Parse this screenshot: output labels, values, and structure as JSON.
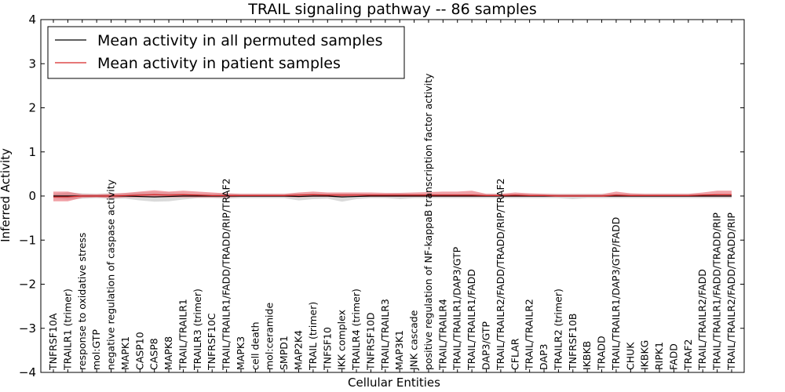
{
  "chart_data": {
    "type": "line",
    "title": "TRAIL signaling pathway -- 86 samples",
    "xlabel": "Cellular Entities",
    "ylabel": "Inferred Activity",
    "ylim": [
      -4,
      4
    ],
    "yticks": [
      4,
      3,
      2,
      1,
      0,
      -1,
      -2,
      -3,
      -4
    ],
    "ytick_labels": [
      "4",
      "3",
      "2",
      "1",
      "0",
      "−1",
      "−2",
      "−3",
      "−4"
    ],
    "categories": [
      "TNFRSF10A",
      "TRAILR1 (trimer)",
      "response to oxidative stress",
      "mol:GTP",
      "negative regulation of caspase activity",
      "MAPK1",
      "CASP10",
      "CASP8",
      "MAPK8",
      "TRAIL/TRAILR1",
      "TRAILR3 (trimer)",
      "TNFRSF10C",
      "TRAIL/TRAILR1/FADD/TRADD/RIP/TRAF2",
      "MAPK3",
      "cell death",
      "mol:ceramide",
      "SMPD1",
      "MAP2K4",
      "TRAIL (trimer)",
      "TNFSF10",
      "IKK complex",
      "TRAILR4 (trimer)",
      "TNFRSF10D",
      "TRAIL/TRAILR3",
      "MAP3K1",
      "JNK cascade",
      "positive regulation of NF-kappaB transcription factor activity",
      "TRAIL/TRAILR4",
      "TRAIL/TRAILR1/DAP3/GTP",
      "TRAIL/TRAILR1/FADD",
      "DAP3/GTP",
      "TRAIL/TRAILR2/FADD/TRADD/RIP/TRAF2",
      "CFLAR",
      "TRAIL/TRAILR2",
      "DAP3",
      "TRAILR2 (trimer)",
      "TNFRSF10B",
      "IKBKB",
      "TRADD",
      "TRAIL/TRAILR1/DAP3/GTP/FADD",
      "CHUK",
      "IKBKG",
      "RIPK1",
      "FADD",
      "TRAF2",
      "TRAIL/TRAILR2/FADD",
      "TRAIL/TRAILR1/FADD/TRADD/RIP",
      "TRAIL/TRAILR2/FADD/TRADD/RIP"
    ],
    "series": [
      {
        "name": "Mean activity in all permuted samples",
        "color": "#000000",
        "band_color": "#bbbbbb",
        "values": [
          0,
          0,
          0,
          0,
          0,
          0,
          -0.01,
          -0.02,
          -0.01,
          0,
          0,
          0,
          0,
          0,
          0,
          0,
          0,
          -0.01,
          0,
          0,
          -0.02,
          -0.01,
          0,
          0,
          0,
          0,
          0,
          0,
          0,
          0,
          0,
          0,
          0,
          0,
          0,
          0,
          0,
          0,
          0,
          0,
          0,
          0,
          0,
          0,
          0,
          0,
          0,
          0
        ],
        "band_lower": [
          -0.05,
          -0.08,
          -0.06,
          -0.05,
          -0.06,
          -0.06,
          -0.1,
          -0.13,
          -0.12,
          -0.08,
          -0.05,
          -0.05,
          -0.06,
          -0.05,
          -0.05,
          -0.05,
          -0.05,
          -0.1,
          -0.07,
          -0.06,
          -0.13,
          -0.07,
          -0.05,
          -0.05,
          -0.07,
          -0.05,
          -0.05,
          -0.05,
          -0.05,
          -0.05,
          -0.05,
          -0.05,
          -0.05,
          -0.05,
          -0.05,
          -0.05,
          -0.07,
          -0.05,
          -0.05,
          -0.05,
          -0.05,
          -0.05,
          -0.05,
          -0.05,
          -0.05,
          -0.05,
          -0.05,
          -0.05
        ],
        "band_upper": [
          0.05,
          0.08,
          0.06,
          0.05,
          0.06,
          0.06,
          0.08,
          0.08,
          0.08,
          0.06,
          0.05,
          0.05,
          0.06,
          0.05,
          0.05,
          0.05,
          0.05,
          0.06,
          0.06,
          0.06,
          0.06,
          0.06,
          0.05,
          0.05,
          0.06,
          0.05,
          0.05,
          0.05,
          0.05,
          0.05,
          0.05,
          0.05,
          0.05,
          0.05,
          0.05,
          0.05,
          0.05,
          0.05,
          0.05,
          0.05,
          0.05,
          0.05,
          0.05,
          0.05,
          0.05,
          0.05,
          0.05,
          0.05
        ]
      },
      {
        "name": "Mean activity in patient samples",
        "color": "#d62728",
        "band_color": "#e8606a",
        "values": [
          -0.02,
          -0.02,
          0,
          0,
          0,
          0.01,
          0.02,
          0.03,
          0.02,
          0.03,
          0.02,
          0.01,
          0.01,
          0.01,
          0.01,
          0.01,
          0.01,
          0.02,
          0.03,
          0.02,
          0.02,
          0.02,
          0.02,
          0.02,
          0.02,
          0.02,
          0.02,
          0.02,
          0.02,
          0.02,
          0.01,
          0.01,
          0.02,
          0.01,
          0.01,
          0,
          0,
          0,
          0,
          0.02,
          0.01,
          0.01,
          0.01,
          0.01,
          0.01,
          0.02,
          0.03,
          0.03
        ],
        "band_lower": [
          -0.12,
          -0.12,
          -0.04,
          -0.03,
          -0.05,
          -0.03,
          -0.03,
          -0.03,
          -0.03,
          -0.03,
          -0.03,
          -0.03,
          -0.03,
          -0.02,
          -0.02,
          -0.02,
          -0.02,
          -0.03,
          -0.02,
          -0.02,
          -0.03,
          -0.02,
          -0.02,
          -0.02,
          -0.02,
          -0.02,
          -0.02,
          -0.02,
          -0.02,
          -0.02,
          -0.02,
          -0.02,
          -0.02,
          -0.02,
          -0.02,
          -0.02,
          -0.02,
          -0.02,
          -0.02,
          -0.02,
          -0.02,
          -0.02,
          -0.02,
          -0.02,
          -0.02,
          -0.02,
          -0.02,
          -0.02
        ],
        "band_upper": [
          0.1,
          0.1,
          0.04,
          0.04,
          0.05,
          0.07,
          0.1,
          0.13,
          0.1,
          0.12,
          0.1,
          0.08,
          0.06,
          0.05,
          0.05,
          0.05,
          0.05,
          0.08,
          0.1,
          0.08,
          0.08,
          0.08,
          0.08,
          0.07,
          0.07,
          0.08,
          0.09,
          0.1,
          0.1,
          0.12,
          0.05,
          0.05,
          0.08,
          0.06,
          0.05,
          0.04,
          0.04,
          0.04,
          0.04,
          0.1,
          0.06,
          0.05,
          0.05,
          0.05,
          0.05,
          0.08,
          0.12,
          0.12
        ]
      }
    ],
    "legend_position": "upper-left"
  }
}
